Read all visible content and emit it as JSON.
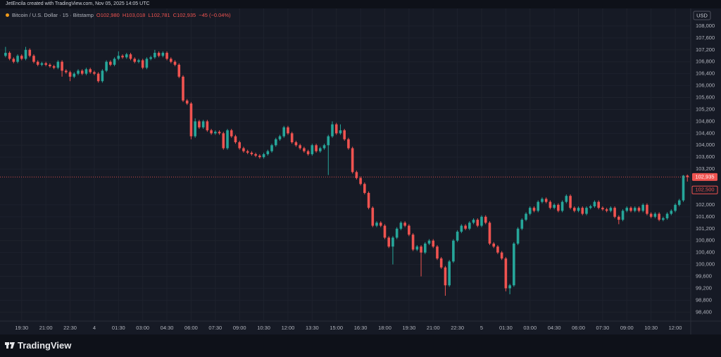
{
  "chart_data": {
    "type": "candlestick",
    "attribution": "JetEncila created with TradingView.com, Nov 05, 2025 14:05 UTC",
    "symbol": "Bitcoin / U.S. Dollar · 15 · Bitstamp",
    "legend_values": [
      "O102,980",
      "H103,018",
      "L102,781",
      "C102,935",
      "−45 (−0.04%)"
    ],
    "currency": "USD",
    "brand": "TradingView",
    "up_color": "#26a69a",
    "down_color": "#ef5350",
    "grid": true,
    "ylim": [
      98100,
      108400
    ],
    "yticks": [
      {
        "value": 108000,
        "label": "108,000"
      },
      {
        "value": 107600,
        "label": "107,600"
      },
      {
        "value": 107200,
        "label": "107,200"
      },
      {
        "value": 106800,
        "label": "106,800"
      },
      {
        "value": 106400,
        "label": "106,400"
      },
      {
        "value": 106000,
        "label": "106,000"
      },
      {
        "value": 105600,
        "label": "105,600"
      },
      {
        "value": 105200,
        "label": "105,200"
      },
      {
        "value": 104800,
        "label": "104,800"
      },
      {
        "value": 104400,
        "label": "104,400"
      },
      {
        "value": 104000,
        "label": "104,000"
      },
      {
        "value": 103600,
        "label": "103,600"
      },
      {
        "value": 103200,
        "label": "103,200"
      },
      {
        "value": 102000,
        "label": "102,000"
      },
      {
        "value": 101600,
        "label": "101,600"
      },
      {
        "value": 101200,
        "label": "101,200"
      },
      {
        "value": 100800,
        "label": "100,800"
      },
      {
        "value": 100400,
        "label": "100,400"
      },
      {
        "value": 100000,
        "label": "100,000"
      },
      {
        "value": 99600,
        "label": "99,600"
      },
      {
        "value": 99200,
        "label": "99,200"
      },
      {
        "value": 98800,
        "label": "98,800"
      },
      {
        "value": 98400,
        "label": "98,400"
      }
    ],
    "price_labels": [
      {
        "value": 102935,
        "label": "102,935"
      },
      {
        "value": 102500,
        "label": "102,500"
      }
    ],
    "categories": [
      null,
      null,
      null,
      null,
      "19:30",
      null,
      null,
      null,
      null,
      null,
      "21:00",
      null,
      null,
      null,
      null,
      null,
      "22:30",
      null,
      null,
      null,
      null,
      null,
      "4",
      null,
      null,
      null,
      null,
      null,
      "01:30",
      null,
      null,
      null,
      null,
      null,
      "03:00",
      null,
      null,
      null,
      null,
      null,
      "04:30",
      null,
      null,
      null,
      null,
      null,
      "06:00",
      null,
      null,
      null,
      null,
      null,
      "07:30",
      null,
      null,
      null,
      null,
      null,
      "09:00",
      null,
      null,
      null,
      null,
      null,
      "10:30",
      null,
      null,
      null,
      null,
      null,
      "12:00",
      null,
      null,
      null,
      null,
      null,
      "13:30",
      null,
      null,
      null,
      null,
      null,
      "15:00",
      null,
      null,
      null,
      null,
      null,
      "16:30",
      null,
      null,
      null,
      null,
      null,
      "18:00",
      null,
      null,
      null,
      null,
      null,
      "19:30",
      null,
      null,
      null,
      null,
      null,
      "21:00",
      null,
      null,
      null,
      null,
      null,
      "22:30",
      null,
      null,
      null,
      null,
      null,
      "5",
      null,
      null,
      null,
      null,
      null,
      "01:30",
      null,
      null,
      null,
      null,
      null,
      "03:00",
      null,
      null,
      null,
      null,
      null,
      "04:30",
      null,
      null,
      null,
      null,
      null,
      "06:00",
      null,
      null,
      null,
      null,
      null,
      "07:30",
      null,
      null,
      null,
      null,
      null,
      "09:00",
      null,
      null,
      null,
      null,
      null,
      "10:30",
      null,
      null,
      null,
      null,
      null,
      "12:00",
      null,
      null,
      null
    ],
    "open": [
      107000,
      107100,
      106900,
      106800,
      107000,
      106900,
      107200,
      107000,
      106800,
      106700,
      106750,
      106700,
      106650,
      106600,
      106800,
      106500,
      106450,
      106300,
      106400,
      106500,
      106400,
      106550,
      106450,
      106400,
      106150,
      106500,
      106800,
      106700,
      106900,
      107000,
      106950,
      107050,
      106900,
      106800,
      106850,
      106600,
      106900,
      106950,
      107100,
      107000,
      107100,
      106900,
      106800,
      106700,
      106300,
      105500,
      105400,
      104300,
      104800,
      104600,
      104800,
      104500,
      104400,
      104450,
      104400,
      103900,
      104500,
      104300,
      104100,
      103900,
      103800,
      103750,
      103700,
      103650,
      103600,
      103700,
      103800,
      104000,
      104200,
      104300,
      104600,
      104400,
      104100,
      104000,
      103900,
      103800,
      103700,
      104000,
      103800,
      103900,
      104000,
      104300,
      104700,
      104400,
      104500,
      104200,
      103900,
      103100,
      102900,
      102700,
      102400,
      101900,
      101300,
      101400,
      101300,
      100900,
      100600,
      100900,
      101200,
      101400,
      101300,
      101000,
      100500,
      100600,
      100400,
      100700,
      100800,
      100600,
      100200,
      99900,
      99300,
      100100,
      100800,
      101100,
      101300,
      101200,
      101400,
      101500,
      101300,
      101600,
      101400,
      100700,
      100600,
      100400,
      100200,
      99200,
      99300,
      100700,
      101200,
      101500,
      101700,
      101900,
      101800,
      102100,
      102200,
      102100,
      101900,
      102000,
      101800,
      102100,
      102300,
      101900,
      101800,
      101900,
      101700,
      101900,
      101950,
      102100,
      101900,
      101850,
      101800,
      101900,
      101600,
      101500,
      101800,
      101900,
      101800,
      101900,
      101800,
      102000,
      101700,
      101600,
      101700,
      101500,
      101550,
      101700,
      101800,
      102000,
      102150,
      102980
    ],
    "high": [
      107300,
      107150,
      106950,
      107050,
      107050,
      107300,
      107250,
      107050,
      106850,
      106800,
      106800,
      106750,
      106700,
      106850,
      106850,
      106550,
      106500,
      106450,
      106550,
      106550,
      106600,
      106600,
      106500,
      106450,
      106550,
      106850,
      106850,
      106950,
      107150,
      107050,
      107100,
      107100,
      106950,
      106900,
      106900,
      106950,
      107000,
      107200,
      107150,
      107150,
      107150,
      106950,
      106850,
      106750,
      106350,
      105550,
      105450,
      104900,
      104850,
      104850,
      104850,
      104550,
      104500,
      104500,
      104450,
      104550,
      104550,
      104350,
      104150,
      103950,
      103850,
      103800,
      103750,
      103700,
      103750,
      103850,
      104050,
      104250,
      104350,
      104650,
      104650,
      104450,
      104150,
      104050,
      103950,
      103850,
      104050,
      104050,
      103950,
      104050,
      104350,
      104800,
      104750,
      104700,
      104550,
      104250,
      103950,
      103150,
      102950,
      102750,
      102450,
      101950,
      101450,
      101450,
      101350,
      100950,
      100950,
      101250,
      101450,
      101450,
      101350,
      101050,
      100650,
      100650,
      100750,
      100850,
      100850,
      100650,
      100250,
      99950,
      100150,
      100850,
      101150,
      101350,
      101350,
      101450,
      101550,
      101550,
      101650,
      101650,
      101450,
      100750,
      100650,
      100450,
      100250,
      99350,
      100750,
      101250,
      101550,
      101750,
      101950,
      101950,
      102150,
      102250,
      102250,
      102150,
      102050,
      102050,
      102150,
      102350,
      102350,
      101950,
      101950,
      101950,
      101950,
      102000,
      102150,
      102150,
      101950,
      101900,
      101950,
      101950,
      101650,
      101850,
      101950,
      101950,
      101950,
      101950,
      102050,
      102050,
      101750,
      101750,
      101750,
      101600,
      101750,
      101850,
      102050,
      102200,
      103000,
      103018
    ],
    "low": [
      106950,
      106850,
      106750,
      106750,
      106850,
      106850,
      106950,
      106750,
      106650,
      106650,
      106650,
      106600,
      106550,
      106550,
      106300,
      106400,
      106150,
      106250,
      106350,
      106350,
      106350,
      106400,
      106350,
      106100,
      106100,
      106450,
      106650,
      106650,
      106850,
      106900,
      106900,
      106850,
      106750,
      106750,
      106550,
      106550,
      106850,
      106900,
      106950,
      106950,
      106850,
      106750,
      106650,
      106250,
      105450,
      105350,
      104200,
      104250,
      104550,
      104550,
      104450,
      104350,
      104350,
      104350,
      103850,
      103850,
      104250,
      104050,
      103850,
      103750,
      103700,
      103650,
      103600,
      103550,
      103550,
      103650,
      103750,
      103950,
      104150,
      104250,
      104350,
      104050,
      103950,
      103850,
      103750,
      103650,
      103650,
      103750,
      103750,
      103850,
      103000,
      104250,
      104350,
      104350,
      104150,
      103850,
      103050,
      102850,
      102650,
      102350,
      101850,
      101250,
      101250,
      101250,
      100850,
      100550,
      100000,
      100850,
      101150,
      101250,
      100950,
      100450,
      100450,
      99600,
      100350,
      100650,
      100550,
      100150,
      99850,
      98950,
      99250,
      100050,
      100750,
      101050,
      101150,
      101150,
      101350,
      101250,
      101250,
      101350,
      100650,
      100550,
      100350,
      100150,
      99100,
      99000,
      99250,
      100650,
      101150,
      101450,
      101650,
      101750,
      101750,
      102050,
      102050,
      101850,
      101850,
      101750,
      101750,
      102050,
      101850,
      101750,
      101750,
      101650,
      101650,
      101850,
      101900,
      101850,
      101800,
      101750,
      101750,
      101550,
      101350,
      101450,
      101750,
      101750,
      101750,
      101750,
      101750,
      101650,
      101550,
      101550,
      101450,
      101450,
      101500,
      101650,
      101750,
      101950,
      102100,
      102781
    ],
    "close": [
      107100,
      106900,
      106800,
      107000,
      106900,
      107200,
      107000,
      106800,
      106700,
      106750,
      106700,
      106650,
      106600,
      106800,
      106500,
      106450,
      106300,
      106400,
      106500,
      106400,
      106550,
      106450,
      106400,
      106150,
      106500,
      106800,
      106700,
      106900,
      107000,
      106950,
      107050,
      106900,
      106800,
      106850,
      106600,
      106900,
      106950,
      107100,
      107000,
      107100,
      106900,
      106800,
      106700,
      106300,
      105500,
      105400,
      104300,
      104800,
      104600,
      104800,
      104500,
      104400,
      104450,
      104400,
      103900,
      104500,
      104300,
      104100,
      103900,
      103800,
      103750,
      103700,
      103650,
      103600,
      103700,
      103800,
      104000,
      104200,
      104300,
      104600,
      104400,
      104100,
      104000,
      103900,
      103800,
      103700,
      104000,
      103800,
      103900,
      104000,
      104300,
      104700,
      104400,
      104500,
      104200,
      103900,
      103100,
      102900,
      102700,
      102400,
      101900,
      101300,
      101400,
      101300,
      100900,
      100600,
      100900,
      101200,
      101400,
      101300,
      101000,
      100500,
      100600,
      100400,
      100700,
      100800,
      100600,
      100200,
      99900,
      99300,
      100100,
      100800,
      101100,
      101300,
      101200,
      101400,
      101500,
      101300,
      101600,
      101400,
      100700,
      100600,
      100400,
      100200,
      99200,
      99300,
      100700,
      101200,
      101500,
      101700,
      101900,
      101800,
      102100,
      102200,
      102100,
      101900,
      102000,
      101800,
      102100,
      102300,
      101900,
      101800,
      101900,
      101700,
      101900,
      101950,
      102100,
      101900,
      101850,
      101800,
      101900,
      101600,
      101500,
      101800,
      101900,
      101800,
      101900,
      101800,
      102000,
      101700,
      101600,
      101700,
      101500,
      101550,
      101700,
      101800,
      102000,
      102150,
      102980,
      102935
    ]
  }
}
